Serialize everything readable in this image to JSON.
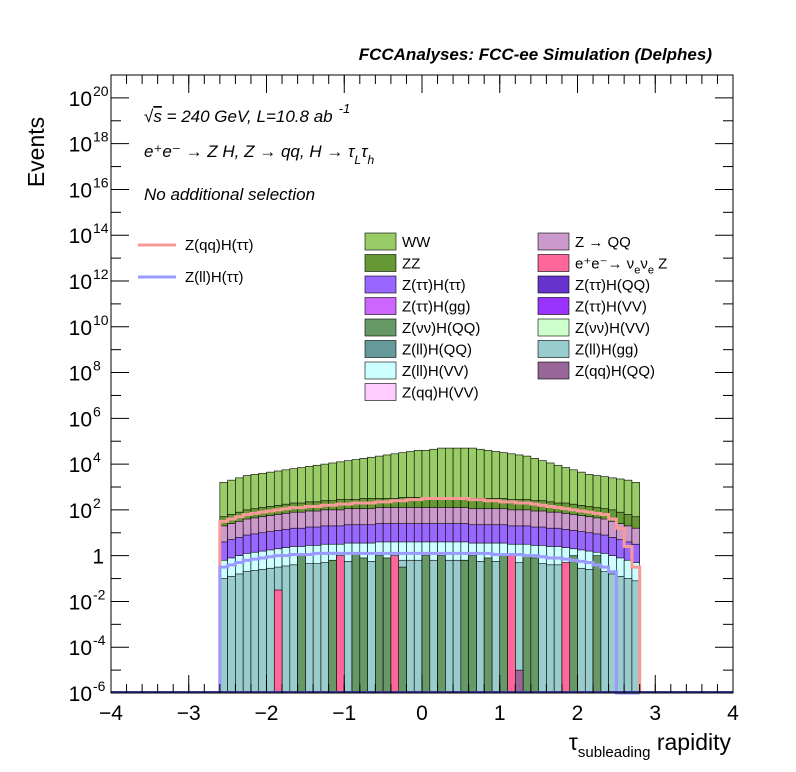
{
  "chart_data": {
    "type": "histogram",
    "title": "FCCAnalyses: FCC-ee Simulation (Delphes)",
    "xlabel_main": "τ",
    "xlabel_sub": "subleading",
    "xlabel_rest": " rapidity",
    "ylabel": "Events",
    "xlim": [
      -4,
      4
    ],
    "ylim_log10": [
      -6,
      21
    ],
    "log_y": true,
    "grid": false,
    "x_ticks": [
      {
        "v": -4,
        "label": "−4"
      },
      {
        "v": -3,
        "label": "−3"
      },
      {
        "v": -2,
        "label": "−2"
      },
      {
        "v": -1,
        "label": "−1"
      },
      {
        "v": 0,
        "label": "0"
      },
      {
        "v": 1,
        "label": "1"
      },
      {
        "v": 2,
        "label": "2"
      },
      {
        "v": 3,
        "label": "3"
      },
      {
        "v": 4,
        "label": "4"
      }
    ],
    "y_ticks": [
      {
        "exp": 20,
        "base": "10",
        "sup": "20"
      },
      {
        "exp": 18,
        "base": "10",
        "sup": "18"
      },
      {
        "exp": 16,
        "base": "10",
        "sup": "16"
      },
      {
        "exp": 14,
        "base": "10",
        "sup": "14"
      },
      {
        "exp": 12,
        "base": "10",
        "sup": "12"
      },
      {
        "exp": 10,
        "base": "10",
        "sup": "10"
      },
      {
        "exp": 8,
        "base": "10",
        "sup": "8"
      },
      {
        "exp": 6,
        "base": "10",
        "sup": "6"
      },
      {
        "exp": 4,
        "base": "10",
        "sup": "4"
      },
      {
        "exp": 2,
        "base": "10",
        "sup": "2"
      },
      {
        "exp": 0,
        "base": "1",
        "sup": ""
      },
      {
        "exp": -2,
        "base": "10",
        "sup": "-2"
      },
      {
        "exp": -4,
        "base": "10",
        "sup": "-4"
      },
      {
        "exp": -6,
        "base": "10",
        "sup": "-6"
      }
    ],
    "annotations": {
      "energy_sqrt": "√",
      "energy_s": "s",
      "energy_rest": " = 240 GeV, L=10.8 ab",
      "energy_sup": "-1",
      "process": "e⁺e⁻ → Z H, Z → qq, H → τ",
      "process_sub1": "L",
      "process_tau2": "τ",
      "process_sub2": "h",
      "selection": "No additional selection"
    },
    "legend_signal": [
      {
        "name": "Z(qq)H(ττ)",
        "color": "#f79a98"
      },
      {
        "name": "Z(ll)H(ττ)",
        "color": "#9a9aff"
      }
    ],
    "legend_background": [
      {
        "name": "WW",
        "color": "#99cc66"
      },
      {
        "name": "Z → QQ",
        "color": "#cc99cc"
      },
      {
        "name": "ZZ",
        "color": "#669933"
      },
      {
        "name": "e⁺e⁻→ ν",
        "name_extra": "e",
        "name_tail": "ν",
        "name_extra2": "e",
        "name_end": " Z",
        "color": "#ff6699"
      },
      {
        "name": "Z(ττ)H(ττ)",
        "color": "#9966ff"
      },
      {
        "name": "Z(ττ)H(QQ)",
        "color": "#6633cc"
      },
      {
        "name": "Z(ττ)H(gg)",
        "color": "#cc66ff"
      },
      {
        "name": "Z(ττ)H(VV)",
        "color": "#9933ff"
      },
      {
        "name": "Z(νν)H(QQ)",
        "color": "#669966"
      },
      {
        "name": "Z(νν)H(VV)",
        "color": "#ccffcc"
      },
      {
        "name": "Z(ll)H(QQ)",
        "color": "#669999"
      },
      {
        "name": "Z(ll)H(gg)",
        "color": "#99cccc"
      },
      {
        "name": "Z(ll)H(VV)",
        "color": "#ccffff"
      },
      {
        "name": "Z(qq)H(QQ)",
        "color": "#996699"
      },
      {
        "name": "Z(qq)H(VV)",
        "color": "#ffccff"
      }
    ],
    "bins": {
      "start": -2.6,
      "end": 2.8,
      "width": 0.1
    },
    "stack_levels_log10": {
      "WW_top": [
        3.2,
        3.3,
        3.4,
        3.5,
        3.55,
        3.6,
        3.65,
        3.7,
        3.75,
        3.8,
        3.85,
        3.9,
        3.95,
        4.0,
        4.05,
        4.1,
        4.15,
        4.2,
        4.25,
        4.3,
        4.35,
        4.4,
        4.45,
        4.5,
        4.55,
        4.6,
        4.6,
        4.65,
        4.7,
        4.7,
        4.7,
        4.7,
        4.7,
        4.65,
        4.6,
        4.55,
        4.5,
        4.45,
        4.4,
        4.35,
        4.25,
        4.15,
        4.05,
        3.95,
        3.85,
        3.75,
        3.65,
        3.55,
        3.5,
        3.45,
        3.4,
        3.35,
        3.3,
        3.2
      ],
      "ZZ_top": [
        1.7,
        1.8,
        1.9,
        2.0,
        2.05,
        2.1,
        2.15,
        2.2,
        2.25,
        2.3,
        2.3,
        2.35,
        2.35,
        2.4,
        2.4,
        2.45,
        2.45,
        2.45,
        2.5,
        2.5,
        2.5,
        2.5,
        2.5,
        2.55,
        2.55,
        2.55,
        2.55,
        2.55,
        2.55,
        2.55,
        2.55,
        2.55,
        2.5,
        2.5,
        2.5,
        2.5,
        2.5,
        2.45,
        2.45,
        2.45,
        2.4,
        2.4,
        2.35,
        2.3,
        2.3,
        2.25,
        2.2,
        2.15,
        2.1,
        2.05,
        2.0,
        1.9,
        1.8,
        1.7
      ],
      "ZQQ_top": [
        1.3,
        1.4,
        1.5,
        1.6,
        1.65,
        1.7,
        1.75,
        1.8,
        1.85,
        1.9,
        1.9,
        1.95,
        1.95,
        2.0,
        2.0,
        2.0,
        2.05,
        2.05,
        2.05,
        2.05,
        2.1,
        2.1,
        2.1,
        2.1,
        2.1,
        2.1,
        2.1,
        2.1,
        2.1,
        2.1,
        2.1,
        2.1,
        2.05,
        2.05,
        2.05,
        2.05,
        2.05,
        2.0,
        2.0,
        2.0,
        1.95,
        1.95,
        1.9,
        1.9,
        1.85,
        1.8,
        1.75,
        1.7,
        1.65,
        1.6,
        1.5,
        1.4,
        1.3,
        1.2
      ],
      "Htt_top": [
        0.6,
        0.7,
        0.8,
        0.9,
        0.95,
        1.0,
        1.05,
        1.1,
        1.15,
        1.2,
        1.2,
        1.25,
        1.25,
        1.3,
        1.3,
        1.3,
        1.35,
        1.35,
        1.35,
        1.35,
        1.4,
        1.4,
        1.4,
        1.4,
        1.4,
        1.4,
        1.4,
        1.4,
        1.4,
        1.4,
        1.4,
        1.4,
        1.35,
        1.35,
        1.35,
        1.35,
        1.35,
        1.3,
        1.3,
        1.3,
        1.25,
        1.25,
        1.2,
        1.2,
        1.15,
        1.1,
        1.05,
        1.0,
        0.95,
        0.9,
        0.8,
        0.7,
        0.6,
        0.5
      ],
      "VV_top": [
        -0.2,
        -0.1,
        0.0,
        0.1,
        0.15,
        0.2,
        0.25,
        0.3,
        0.35,
        0.4,
        0.4,
        0.45,
        0.45,
        0.5,
        0.5,
        0.5,
        0.55,
        0.55,
        0.55,
        0.55,
        0.6,
        0.6,
        0.6,
        0.6,
        0.6,
        0.6,
        0.6,
        0.6,
        0.6,
        0.6,
        0.6,
        0.6,
        0.55,
        0.55,
        0.55,
        0.55,
        0.55,
        0.5,
        0.5,
        0.5,
        0.45,
        0.45,
        0.4,
        0.4,
        0.35,
        0.3,
        0.25,
        0.2,
        0.15,
        0.1,
        0.0,
        -0.1,
        -0.2,
        -0.3
      ],
      "llgg_top": [
        -1.0,
        -0.9,
        -0.8,
        -0.7,
        -0.65,
        -0.6,
        -0.55,
        -0.5,
        -0.45,
        -0.4,
        -0.4,
        -0.35,
        -0.35,
        -0.3,
        -0.3,
        -0.3,
        -0.25,
        -0.25,
        -0.25,
        -0.25,
        -0.2,
        -0.2,
        -0.2,
        -0.2,
        -0.2,
        -0.2,
        -0.2,
        -0.2,
        -0.2,
        -0.2,
        -0.2,
        -0.2,
        -0.25,
        -0.25,
        -0.25,
        -0.25,
        -0.25,
        -0.3,
        -0.3,
        -0.3,
        -0.35,
        -0.35,
        -0.4,
        -0.4,
        -0.45,
        -0.5,
        -0.55,
        -0.6,
        -0.65,
        -0.7,
        -0.8,
        -0.9,
        -1.0,
        -1.1
      ]
    },
    "signal_qq_log10": [
      1.5,
      1.6,
      1.7,
      1.8,
      1.85,
      1.9,
      1.95,
      2.0,
      2.05,
      2.1,
      2.1,
      2.15,
      2.15,
      2.2,
      2.2,
      2.25,
      2.25,
      2.3,
      2.3,
      2.3,
      2.35,
      2.35,
      2.4,
      2.4,
      2.45,
      2.45,
      2.5,
      2.5,
      2.5,
      2.5,
      2.5,
      2.5,
      2.45,
      2.45,
      2.4,
      2.4,
      2.35,
      2.35,
      2.3,
      2.3,
      2.25,
      2.2,
      2.15,
      2.1,
      2.05,
      2.0,
      1.95,
      1.9,
      1.85,
      1.8,
      1.6,
      1.2,
      0.4,
      -0.5
    ],
    "signal_ll_log10": [
      -0.5,
      -0.4,
      -0.3,
      -0.2,
      -0.15,
      -0.1,
      -0.05,
      0.0,
      0.0,
      0.05,
      0.05,
      0.05,
      0.1,
      0.1,
      0.1,
      0.1,
      0.1,
      0.1,
      0.1,
      0.1,
      0.1,
      0.1,
      0.1,
      0.1,
      0.1,
      0.1,
      0.1,
      0.1,
      0.1,
      0.1,
      0.1,
      0.1,
      0.1,
      0.1,
      0.1,
      0.05,
      0.05,
      0.05,
      0.05,
      0.0,
      0.0,
      -0.05,
      -0.1,
      -0.1,
      -0.15,
      -0.2,
      -0.25,
      -0.3,
      -0.4,
      -0.5,
      -0.7,
      -6,
      -6,
      -6
    ],
    "spike_bins": [
      {
        "i": 10,
        "log10": 0.0,
        "color": "#669966"
      },
      {
        "i": 14,
        "log10": -0.2,
        "color": "#669966"
      },
      {
        "i": 17,
        "log10": 0.1,
        "color": "#669966"
      },
      {
        "i": 18,
        "log10": -0.1,
        "color": "#669966"
      },
      {
        "i": 20,
        "log10": 0.0,
        "color": "#669966"
      },
      {
        "i": 21,
        "log10": -0.1,
        "color": "#669966"
      },
      {
        "i": 23,
        "log10": -0.5,
        "color": "#669966"
      },
      {
        "i": 26,
        "log10": 0.0,
        "color": "#669966"
      },
      {
        "i": 28,
        "log10": 0.0,
        "color": "#669966"
      },
      {
        "i": 31,
        "log10": -0.2,
        "color": "#669966"
      },
      {
        "i": 32,
        "log10": 0.0,
        "color": "#669966"
      },
      {
        "i": 34,
        "log10": -0.1,
        "color": "#669966"
      },
      {
        "i": 36,
        "log10": 0.0,
        "color": "#669966"
      },
      {
        "i": 39,
        "log10": 0.0,
        "color": "#669966"
      },
      {
        "i": 40,
        "log10": -0.1,
        "color": "#669966"
      },
      {
        "i": 45,
        "log10": 0.0,
        "color": "#669966"
      },
      {
        "i": 48,
        "log10": 0.0,
        "color": "#669966"
      },
      {
        "i": 7,
        "log10": -1.5,
        "color": "#ff6699"
      },
      {
        "i": 15,
        "log10": 0.0,
        "color": "#ff6699"
      },
      {
        "i": 22,
        "log10": 0.0,
        "color": "#ff6699"
      },
      {
        "i": 37,
        "log10": 0.0,
        "color": "#ff6699"
      },
      {
        "i": 44,
        "log10": -0.3,
        "color": "#ff6699"
      },
      {
        "i": 38,
        "log10": -5.0,
        "color": "#996699"
      }
    ]
  }
}
